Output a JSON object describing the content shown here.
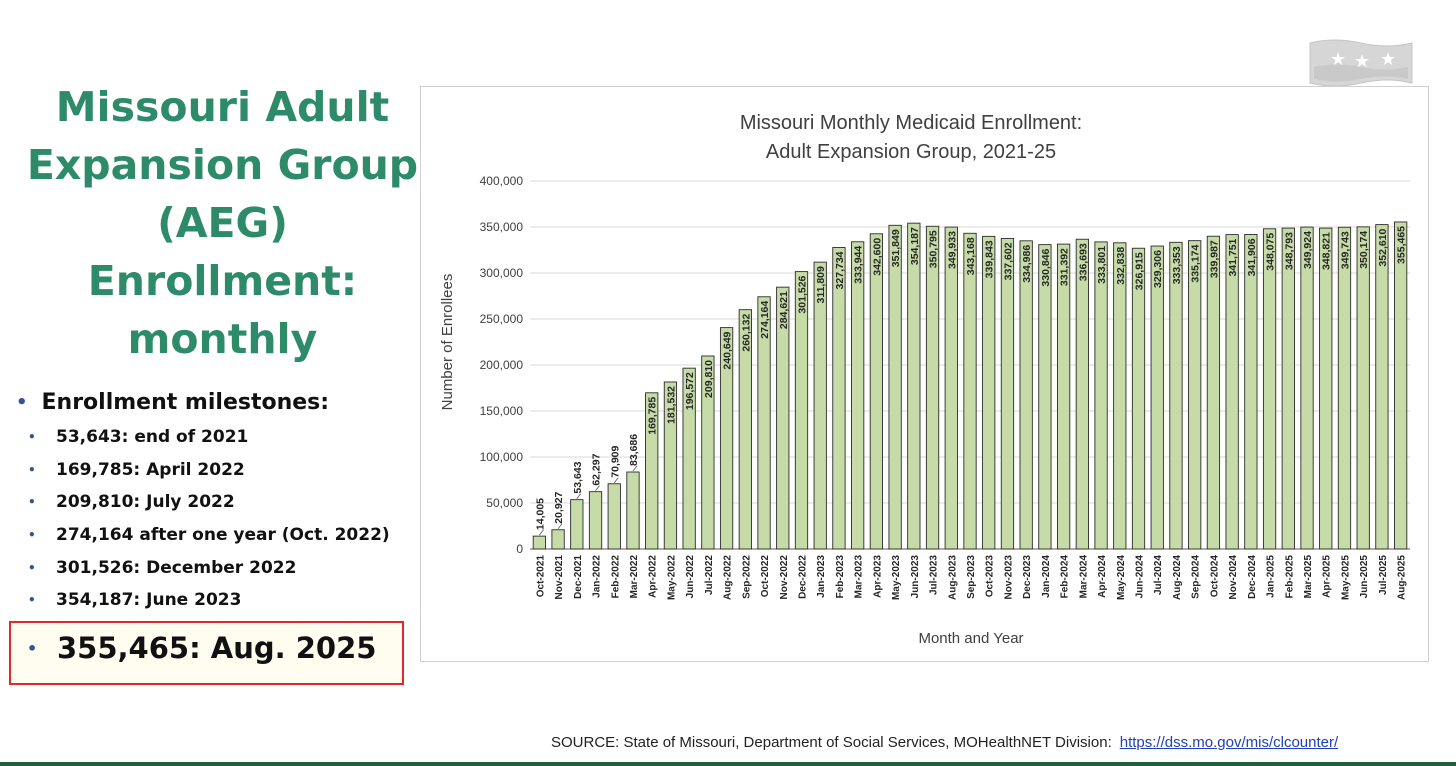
{
  "slide": {
    "title_lines": [
      "Missouri Adult",
      "Expansion Group",
      "(AEG) Enrollment:",
      "monthly"
    ],
    "milestones_heading": "Enrollment milestones:",
    "milestones": [
      "53,643: end of 2021",
      "169,785: April 2022",
      "209,810: July 2022",
      "274,164 after one year (Oct. 2022)",
      "301,526: December 2022",
      "354,187: June 2023"
    ],
    "highlight": "355,465: Aug. 2025",
    "source_text": "SOURCE: State of Missouri, Department of Social Services, MOHealthNET Division:",
    "source_url": "https://dss.mo.gov/mis/clcounter/",
    "colors": {
      "title": "#2e8b6a",
      "bar_fill": "#c6dba8",
      "bar_stroke": "#2b2b2b",
      "highlight_border": "#e0282e",
      "bullet": "#2f5597",
      "footer_rule": "#1f5f3b"
    }
  },
  "chart_data": {
    "type": "bar",
    "title": "Missouri Monthly Medicaid Enrollment:",
    "subtitle": "Adult Expansion Group, 2021-25",
    "xlabel": "Month and Year",
    "ylabel": "Number of Enrollees",
    "ylim": [
      0,
      400000
    ],
    "yticks": [
      0,
      50000,
      100000,
      150000,
      200000,
      250000,
      300000,
      350000,
      400000
    ],
    "ytick_labels": [
      "0",
      "50,000",
      "100,000",
      "150,000",
      "200,000",
      "250,000",
      "300,000",
      "350,000",
      "400,000"
    ],
    "grid": true,
    "legend": "none",
    "categories": [
      "Oct-2021",
      "Nov-2021",
      "Dec-2021",
      "Jan-2022",
      "Feb-2022",
      "Mar-2022",
      "Apr-2022",
      "May-2022",
      "Jun-2022",
      "Jul-2022",
      "Aug-2022",
      "Sep-2022",
      "Oct-2022",
      "Nov-2022",
      "Dec-2022",
      "Jan-2023",
      "Feb-2023",
      "Mar-2023",
      "Apr-2023",
      "May-2023",
      "Jun-2023",
      "Jul-2023",
      "Aug-2023",
      "Sep-2023",
      "Oct-2023",
      "Nov-2023",
      "Dec-2023",
      "Jan-2024",
      "Feb-2024",
      "Mar-2024",
      "Apr-2024",
      "May-2024",
      "Jun-2024",
      "Jul-2024",
      "Aug-2024",
      "Sep-2024",
      "Oct-2024",
      "Nov-2024",
      "Dec-2024",
      "Jan-2025",
      "Feb-2025",
      "Mar-2025",
      "Apr-2025",
      "May-2025",
      "Jun-2025",
      "Jul-2025",
      "Aug-2025"
    ],
    "values": [
      14005,
      20927,
      53643,
      62297,
      70909,
      83686,
      169785,
      181532,
      196572,
      209810,
      240649,
      260132,
      274164,
      284621,
      301526,
      311809,
      327734,
      333944,
      342600,
      351849,
      354187,
      350795,
      349933,
      343168,
      339843,
      337602,
      334986,
      330846,
      331392,
      336693,
      333801,
      332838,
      326915,
      329306,
      333353,
      335174,
      339987,
      341751,
      341906,
      348075,
      348793,
      349924,
      348821,
      349743,
      350174,
      352610,
      355465
    ],
    "value_labels": [
      "14,005",
      "20,927",
      "53,643",
      "62,297",
      "70,909",
      "83,686",
      "169,785",
      "181,532",
      "196,572",
      "209,810",
      "240,649",
      "260,132",
      "274,164",
      "284,621",
      "301,526",
      "311,809",
      "327,734",
      "333,944",
      "342,600",
      "351,849",
      "354,187",
      "350,795",
      "349,933",
      "343,168",
      "339,843",
      "337,602",
      "334,986",
      "330,846",
      "331,392",
      "336,693",
      "333,801",
      "332,838",
      "326,915",
      "329,306",
      "333,353",
      "335,174",
      "339,987",
      "341,751",
      "341,906",
      "348,075",
      "348,793",
      "349,924",
      "348,821",
      "349,743",
      "350,174",
      "352,610",
      "355,465"
    ]
  }
}
